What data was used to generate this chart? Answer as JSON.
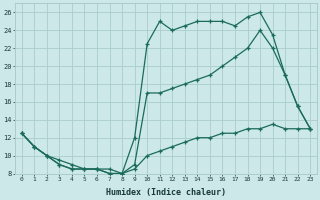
{
  "xlabel": "Humidex (Indice chaleur)",
  "bg_color": "#cce8e8",
  "line_color": "#1a6b5a",
  "grid_color": "#aacccc",
  "line1_x": [
    0,
    1,
    2,
    3,
    4,
    5,
    6,
    7,
    8,
    9,
    10,
    11,
    12,
    13,
    14,
    15,
    16,
    17,
    18,
    19,
    20,
    21,
    22,
    23
  ],
  "line1_y": [
    12.5,
    11,
    10,
    9,
    8.5,
    8.5,
    8.5,
    8.0,
    8.0,
    12.0,
    22.5,
    25.0,
    24.0,
    24.5,
    25.0,
    25.0,
    25.0,
    24.5,
    25.5,
    26.0,
    23.5,
    19.0,
    15.5,
    13.0
  ],
  "line2_x": [
    0,
    1,
    2,
    3,
    4,
    5,
    6,
    7,
    8,
    9,
    10,
    11,
    12,
    13,
    14,
    15,
    16,
    17,
    18,
    19,
    20,
    21,
    22,
    23
  ],
  "line2_y": [
    12.5,
    11,
    10,
    9,
    8.5,
    8.5,
    8.5,
    8.0,
    8.0,
    9.0,
    17.0,
    17.0,
    17.5,
    18.0,
    18.5,
    19.0,
    20.0,
    21.0,
    22.0,
    24.0,
    22.0,
    19.0,
    15.5,
    13.0
  ],
  "line3_x": [
    0,
    1,
    2,
    3,
    4,
    5,
    6,
    7,
    8,
    9,
    10,
    11,
    12,
    13,
    14,
    15,
    16,
    17,
    18,
    19,
    20,
    21,
    22,
    23
  ],
  "line3_y": [
    12.5,
    11,
    10,
    9.5,
    9.0,
    8.5,
    8.5,
    8.5,
    8.0,
    8.5,
    10.0,
    10.5,
    11.0,
    11.5,
    12.0,
    12.0,
    12.5,
    12.5,
    13.0,
    13.0,
    13.5,
    13.0,
    13.0,
    13.0
  ],
  "xlim": [
    -0.5,
    23.5
  ],
  "ylim": [
    8,
    27
  ],
  "yticks": [
    8,
    10,
    12,
    14,
    16,
    18,
    20,
    22,
    24,
    26
  ],
  "xticks": [
    0,
    1,
    2,
    3,
    4,
    5,
    6,
    7,
    8,
    9,
    10,
    11,
    12,
    13,
    14,
    15,
    16,
    17,
    18,
    19,
    20,
    21,
    22,
    23
  ]
}
